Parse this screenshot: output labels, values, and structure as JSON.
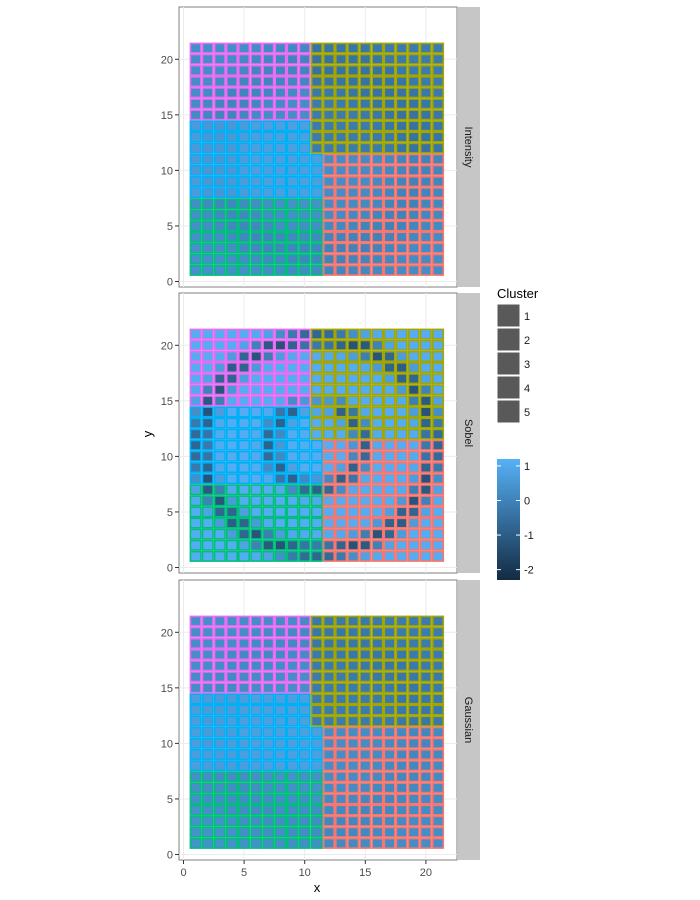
{
  "chart_data": {
    "type": "heatmap",
    "xlabel": "x",
    "ylabel": "y",
    "xlim": [
      0,
      22
    ],
    "ylim": [
      0,
      22
    ],
    "xticks": [
      0,
      5,
      10,
      15,
      20
    ],
    "yticks": [
      0,
      5,
      10,
      15,
      20
    ],
    "facets": [
      "Intensity",
      "Sobel",
      "Gaussian"
    ],
    "grid": {
      "x_from": 1,
      "x_to": 21,
      "y_from": 1,
      "y_to": 21
    },
    "clusters": [
      {
        "label": "1",
        "color": "#f8766d",
        "x_range": [
          12,
          21
        ],
        "y_range": [
          1,
          11
        ]
      },
      {
        "label": "2",
        "color": "#a3a500",
        "x_range": [
          11,
          21
        ],
        "y_range": [
          12,
          21
        ]
      },
      {
        "label": "3",
        "color": "#00bf7d",
        "x_range": [
          1,
          11
        ],
        "y_range": [
          1,
          7
        ]
      },
      {
        "label": "4",
        "color": "#00b0f6",
        "x_range": [
          1,
          11
        ],
        "y_range": [
          8,
          14
        ]
      },
      {
        "label": "5",
        "color": "#e76bf3",
        "x_range": [
          1,
          10
        ],
        "y_range": [
          15,
          21
        ]
      }
    ],
    "fill_scale": {
      "low_color": "#132b43",
      "high_color": "#56b1f7",
      "min": -2.3,
      "max": 1.2
    },
    "legend": {
      "cluster_title": "Cluster",
      "cluster_labels": [
        "1",
        "2",
        "3",
        "4",
        "5"
      ],
      "value_ticks": [
        1,
        0,
        -1,
        -2
      ],
      "placement": "right"
    }
  }
}
